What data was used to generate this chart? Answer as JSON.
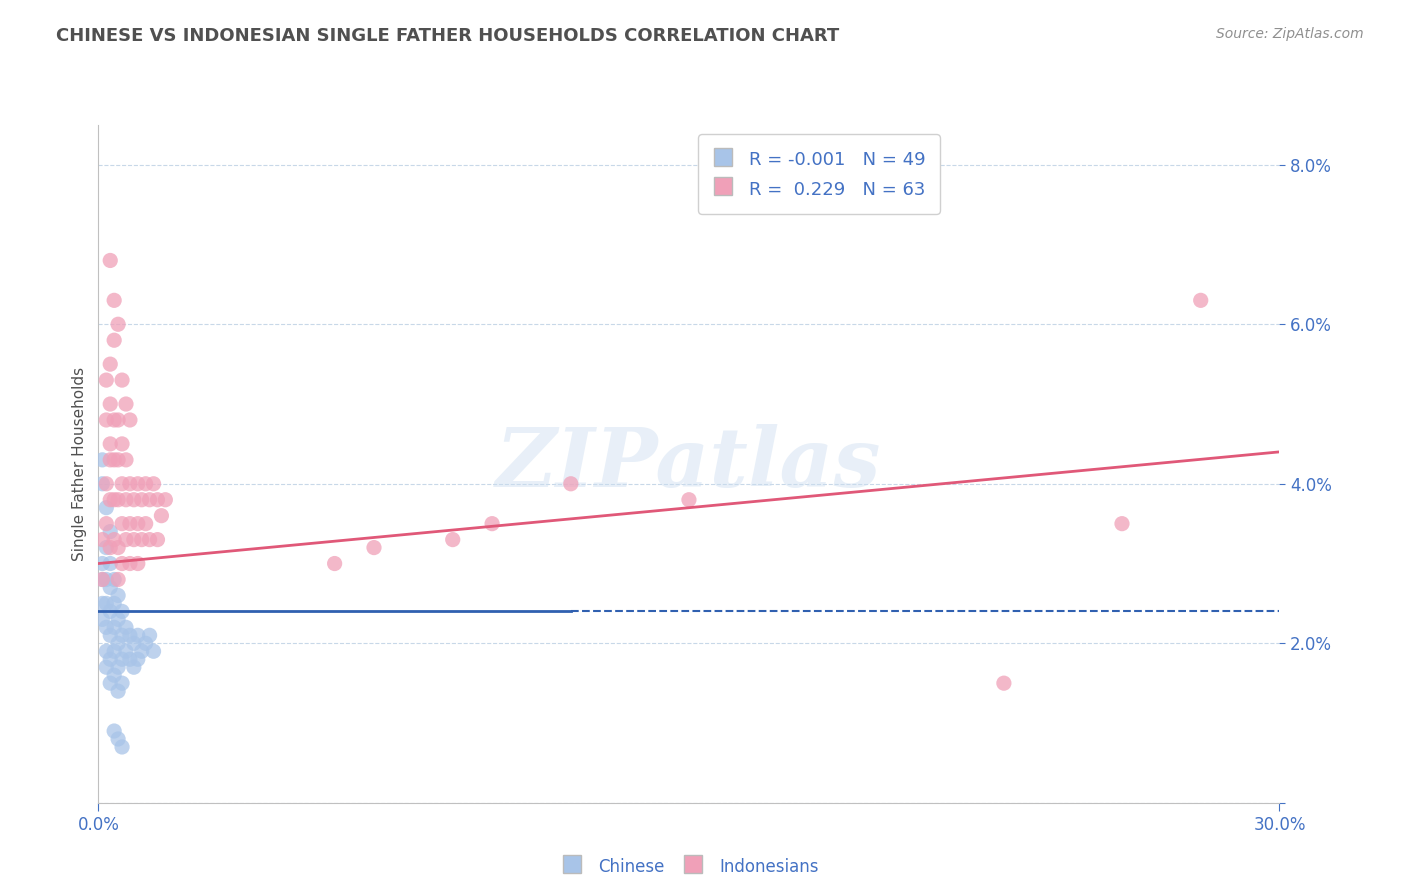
{
  "title": "CHINESE VS INDONESIAN SINGLE FATHER HOUSEHOLDS CORRELATION CHART",
  "source": "Source: ZipAtlas.com",
  "ylabel": "Single Father Households",
  "xlim": [
    0.0,
    0.3
  ],
  "ylim": [
    0.0,
    0.085
  ],
  "xticks": [
    0.0,
    0.3
  ],
  "xticklabels": [
    "0.0%",
    "30.0%"
  ],
  "yticks": [
    0.0,
    0.02,
    0.04,
    0.06,
    0.08
  ],
  "yticklabels": [
    "",
    "2.0%",
    "4.0%",
    "6.0%",
    "8.0%"
  ],
  "chinese_color": "#a8c4e8",
  "indonesian_color": "#f0a0b8",
  "chinese_line_color": "#3060b0",
  "indonesian_line_color": "#e05878",
  "chinese_R": -0.001,
  "chinese_N": 49,
  "indonesian_R": 0.229,
  "indonesian_N": 63,
  "watermark": "ZIPatlas",
  "background_color": "#ffffff",
  "grid_color": "#c8d8e8",
  "title_color": "#505050",
  "tick_color": "#4472c4",
  "chinese_line_solid_end": 0.12,
  "indonesian_line_start_y": 0.03,
  "indonesian_line_end_y": 0.044,
  "chinese_line_y": 0.024,
  "chinese_points": [
    [
      0.001,
      0.03
    ],
    [
      0.001,
      0.028
    ],
    [
      0.001,
      0.025
    ],
    [
      0.001,
      0.023
    ],
    [
      0.002,
      0.032
    ],
    [
      0.002,
      0.028
    ],
    [
      0.002,
      0.025
    ],
    [
      0.002,
      0.022
    ],
    [
      0.002,
      0.019
    ],
    [
      0.002,
      0.017
    ],
    [
      0.003,
      0.03
    ],
    [
      0.003,
      0.027
    ],
    [
      0.003,
      0.024
    ],
    [
      0.003,
      0.021
    ],
    [
      0.003,
      0.018
    ],
    [
      0.003,
      0.015
    ],
    [
      0.004,
      0.028
    ],
    [
      0.004,
      0.025
    ],
    [
      0.004,
      0.022
    ],
    [
      0.004,
      0.019
    ],
    [
      0.004,
      0.016
    ],
    [
      0.005,
      0.026
    ],
    [
      0.005,
      0.023
    ],
    [
      0.005,
      0.02
    ],
    [
      0.005,
      0.017
    ],
    [
      0.005,
      0.014
    ],
    [
      0.006,
      0.024
    ],
    [
      0.006,
      0.021
    ],
    [
      0.006,
      0.018
    ],
    [
      0.006,
      0.015
    ],
    [
      0.007,
      0.022
    ],
    [
      0.007,
      0.019
    ],
    [
      0.008,
      0.021
    ],
    [
      0.008,
      0.018
    ],
    [
      0.009,
      0.02
    ],
    [
      0.009,
      0.017
    ],
    [
      0.01,
      0.021
    ],
    [
      0.01,
      0.018
    ],
    [
      0.011,
      0.019
    ],
    [
      0.012,
      0.02
    ],
    [
      0.013,
      0.021
    ],
    [
      0.014,
      0.019
    ],
    [
      0.001,
      0.043
    ],
    [
      0.001,
      0.04
    ],
    [
      0.002,
      0.037
    ],
    [
      0.003,
      0.034
    ],
    [
      0.004,
      0.009
    ],
    [
      0.005,
      0.008
    ],
    [
      0.006,
      0.007
    ]
  ],
  "indonesian_points": [
    [
      0.001,
      0.033
    ],
    [
      0.001,
      0.028
    ],
    [
      0.002,
      0.048
    ],
    [
      0.002,
      0.04
    ],
    [
      0.002,
      0.035
    ],
    [
      0.003,
      0.055
    ],
    [
      0.003,
      0.05
    ],
    [
      0.003,
      0.043
    ],
    [
      0.003,
      0.038
    ],
    [
      0.003,
      0.032
    ],
    [
      0.004,
      0.048
    ],
    [
      0.004,
      0.043
    ],
    [
      0.004,
      0.038
    ],
    [
      0.004,
      0.033
    ],
    [
      0.005,
      0.048
    ],
    [
      0.005,
      0.043
    ],
    [
      0.005,
      0.038
    ],
    [
      0.005,
      0.032
    ],
    [
      0.005,
      0.028
    ],
    [
      0.006,
      0.045
    ],
    [
      0.006,
      0.04
    ],
    [
      0.006,
      0.035
    ],
    [
      0.006,
      0.03
    ],
    [
      0.007,
      0.043
    ],
    [
      0.007,
      0.038
    ],
    [
      0.007,
      0.033
    ],
    [
      0.008,
      0.04
    ],
    [
      0.008,
      0.035
    ],
    [
      0.008,
      0.03
    ],
    [
      0.009,
      0.038
    ],
    [
      0.009,
      0.033
    ],
    [
      0.01,
      0.04
    ],
    [
      0.01,
      0.035
    ],
    [
      0.01,
      0.03
    ],
    [
      0.011,
      0.038
    ],
    [
      0.011,
      0.033
    ],
    [
      0.012,
      0.04
    ],
    [
      0.012,
      0.035
    ],
    [
      0.013,
      0.038
    ],
    [
      0.013,
      0.033
    ],
    [
      0.014,
      0.04
    ],
    [
      0.015,
      0.038
    ],
    [
      0.015,
      0.033
    ],
    [
      0.016,
      0.036
    ],
    [
      0.017,
      0.038
    ],
    [
      0.003,
      0.068
    ],
    [
      0.004,
      0.063
    ],
    [
      0.004,
      0.058
    ],
    [
      0.005,
      0.06
    ],
    [
      0.002,
      0.053
    ],
    [
      0.003,
      0.045
    ],
    [
      0.006,
      0.053
    ],
    [
      0.007,
      0.05
    ],
    [
      0.008,
      0.048
    ],
    [
      0.15,
      0.038
    ],
    [
      0.1,
      0.035
    ],
    [
      0.09,
      0.033
    ],
    [
      0.12,
      0.04
    ],
    [
      0.06,
      0.03
    ],
    [
      0.07,
      0.032
    ],
    [
      0.28,
      0.063
    ],
    [
      0.26,
      0.035
    ],
    [
      0.23,
      0.015
    ]
  ]
}
